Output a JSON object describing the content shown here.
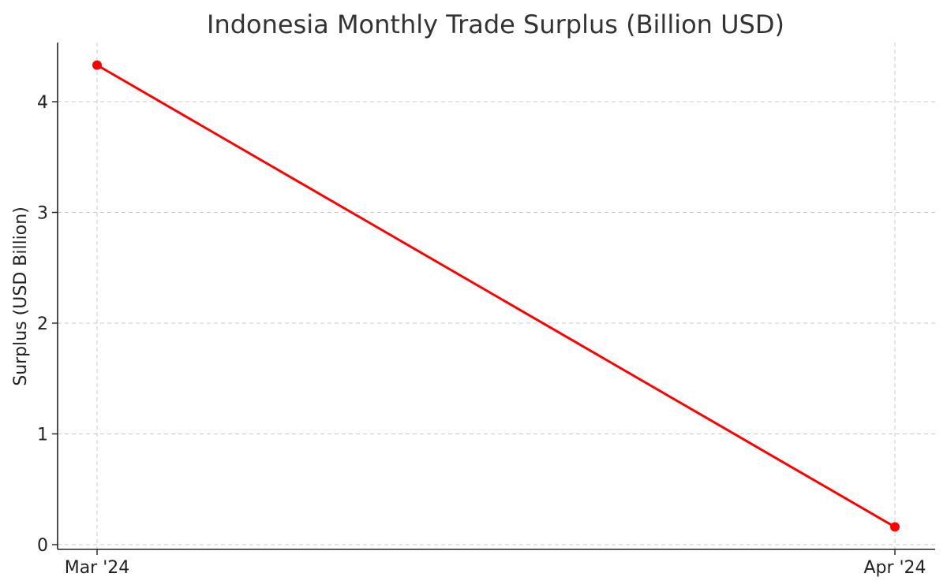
{
  "chart_data": {
    "type": "line",
    "title": "Indonesia Monthly Trade Surplus (Billion USD)",
    "xlabel": "",
    "ylabel": "Surplus (USD Billion)",
    "categories": [
      "Mar '24",
      "Apr '24"
    ],
    "series": [
      {
        "values": [
          4.33,
          0.16
        ],
        "color": "#ff0000"
      }
    ],
    "ylim": [
      0,
      4.5
    ],
    "yticks": [
      0,
      1,
      2,
      3,
      4
    ],
    "grid": true,
    "marker": "circle"
  }
}
